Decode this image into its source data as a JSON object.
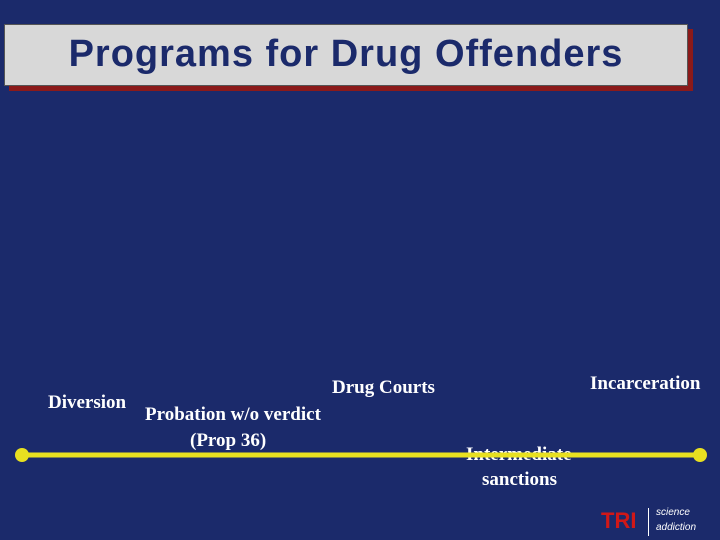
{
  "header": {
    "title": "Programs for Drug Offenders"
  },
  "timeline": {
    "labels": [
      "Diversion",
      "Probation w/o verdict",
      "(Prop 36)",
      "Drug Courts",
      "Intermediate",
      "sanctions",
      "Incarceration"
    ]
  },
  "logo": {
    "mark": "TRI",
    "line1": "science",
    "line2": "addiction"
  }
}
